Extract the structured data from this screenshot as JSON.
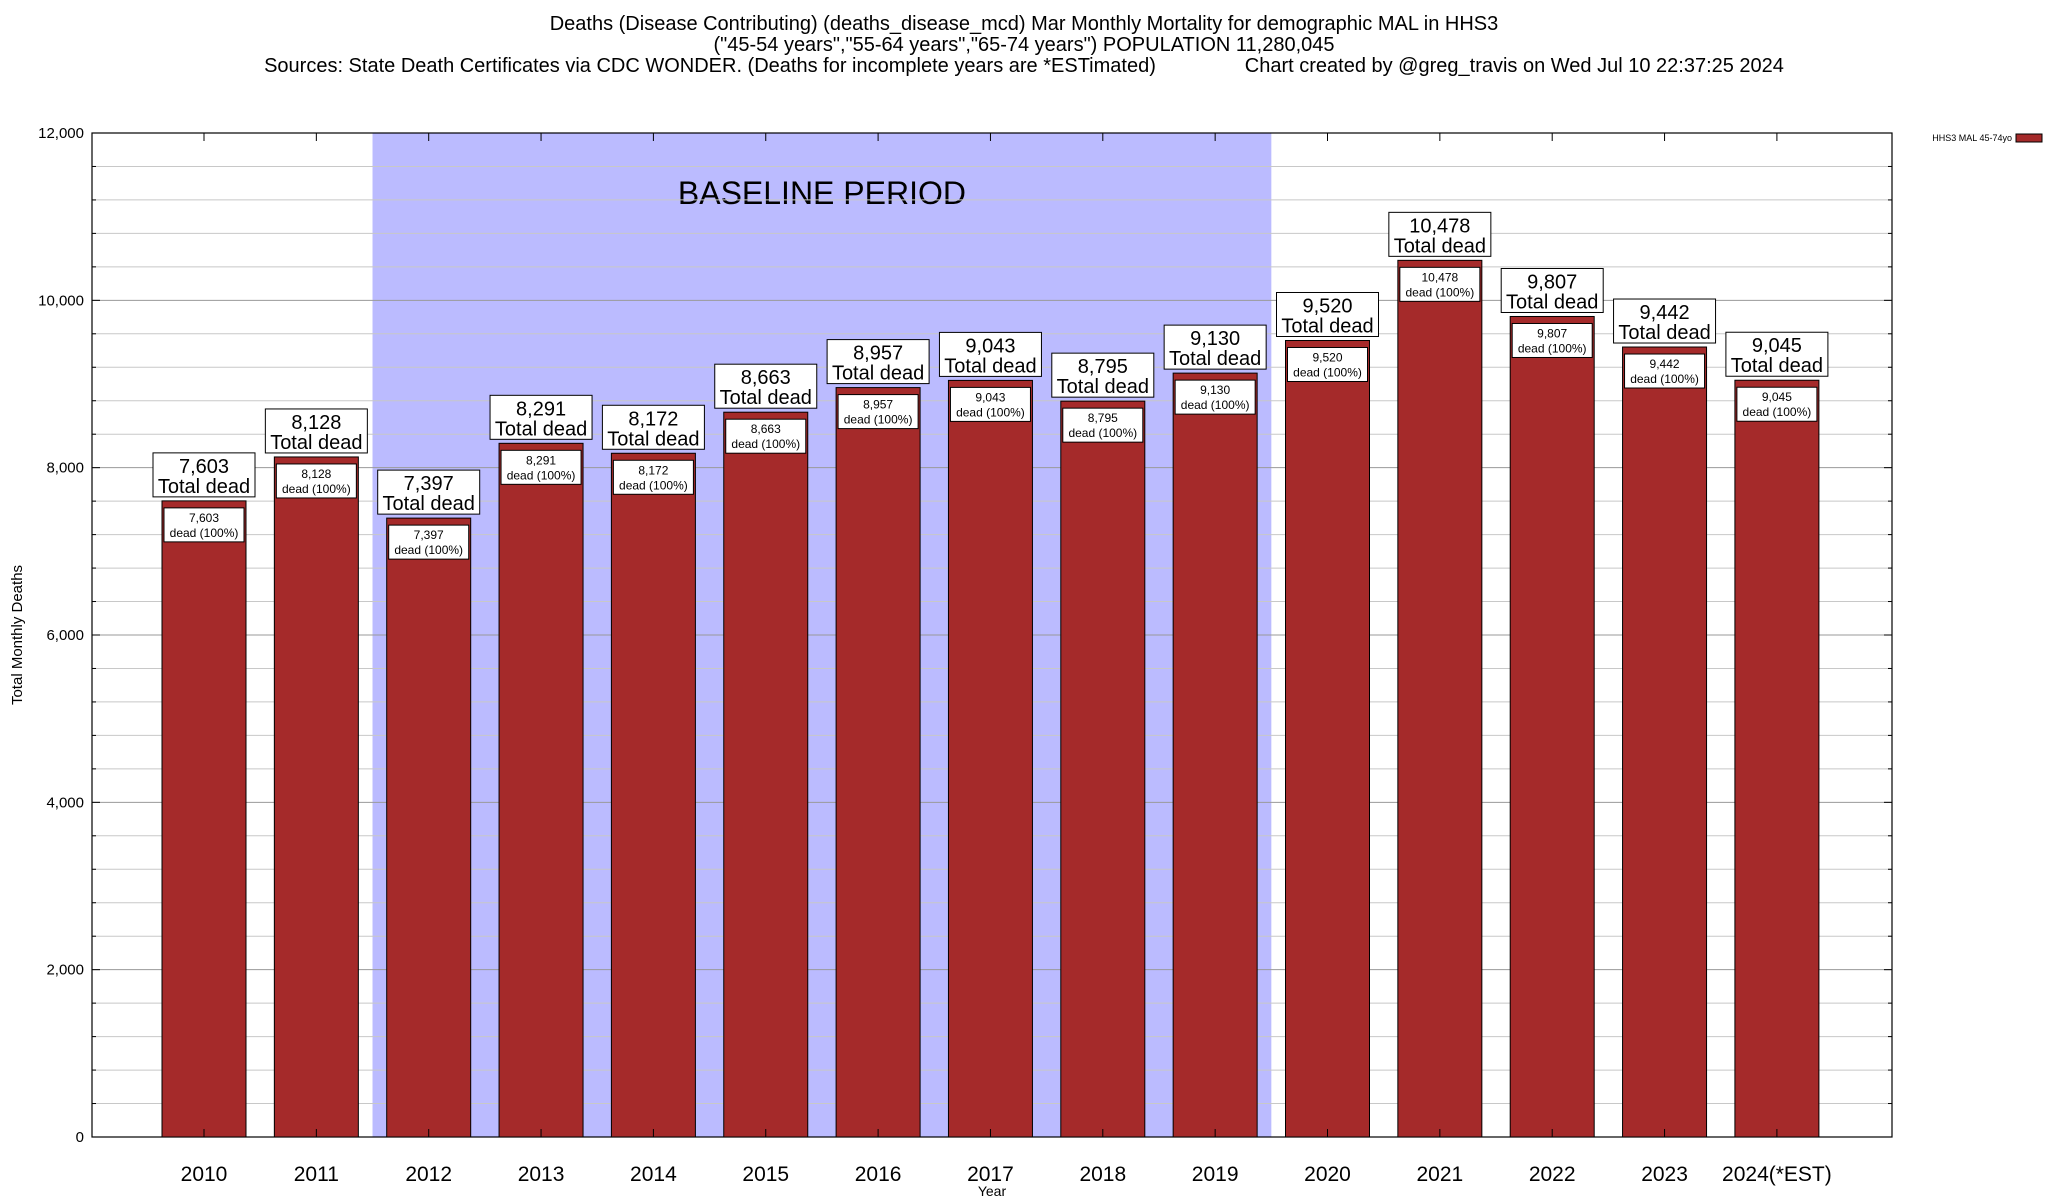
{
  "chart_data": {
    "type": "bar",
    "title_lines": [
      "Deaths (Disease Contributing) (deaths_disease_mcd) Mar Monthly Mortality for demographic MAL in HHS3",
      "(\"45-54 years\",\"55-64 years\",\"65-74 years\") POPULATION 11,280,045",
      "Sources: State Death Certificates via CDC WONDER. (Deaths for incomplete years are *ESTimated)                Chart created by @greg_travis on Wed Jul 10 22:37:25 2024"
    ],
    "xlabel": "Year",
    "ylabel": "Total Monthly Deaths",
    "ylim": [
      0,
      12000
    ],
    "yticks": [
      0,
      2000,
      4000,
      6000,
      8000,
      10000,
      12000
    ],
    "ytick_labels": [
      "0",
      "2,000",
      "4,000",
      "6,000",
      "8,000",
      "10,000",
      "12,000"
    ],
    "grid": true,
    "legend": {
      "position": "top-right",
      "entries": [
        "HHS3 MAL 45-74yo"
      ]
    },
    "categories": [
      "2010",
      "2011",
      "2012",
      "2013",
      "2014",
      "2015",
      "2016",
      "2017",
      "2018",
      "2019",
      "2020",
      "2021",
      "2022",
      "2023",
      "2024(*EST)"
    ],
    "series": [
      {
        "name": "HHS3 MAL 45-74yo",
        "color": "#a52a2a",
        "values": [
          7603,
          8128,
          7397,
          8291,
          8172,
          8663,
          8957,
          9043,
          8795,
          9130,
          9520,
          10478,
          9807,
          9442,
          9045
        ]
      }
    ],
    "total_labels": [
      "7,603",
      "8,128",
      "7,397",
      "8,291",
      "8,172",
      "8,663",
      "8,957",
      "9,043",
      "8,795",
      "9,130",
      "9,520",
      "10,478",
      "9,807",
      "9,442",
      "9,045"
    ],
    "total_suffix": "Total dead",
    "inner_suffix": "dead (100%)",
    "baseline": {
      "label": "BASELINE PERIOD",
      "from": "2012",
      "to": "2019",
      "color": "#bbbbff"
    }
  }
}
